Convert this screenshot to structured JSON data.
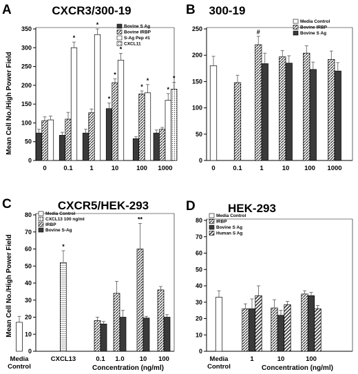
{
  "figure": {
    "ylabel": "Mean Cell No./High Power Field",
    "xlabel": "Concentration (ng/ml)"
  },
  "chart_data": [
    {
      "id": "A",
      "type": "bar",
      "panel_letter": "A",
      "title": "CXCR3/300-19",
      "ylim": [
        0,
        350
      ],
      "yticks": [
        0,
        50,
        100,
        150,
        200,
        250,
        300,
        350
      ],
      "categories": [
        "0",
        "0.1",
        "1",
        "10",
        "100",
        "1000"
      ],
      "legend_position": "top-right",
      "series": [
        {
          "name": "Bovine S Ag",
          "pattern": "solid",
          "values": [
            73,
            67,
            73,
            138,
            58,
            73
          ],
          "errors": [
            10,
            8,
            10,
            15,
            5,
            8
          ],
          "sig": [
            "",
            "",
            "",
            "*",
            "",
            ""
          ]
        },
        {
          "name": "Bovine IRBP",
          "pattern": "diag",
          "values": [
            106,
            110,
            127,
            207,
            177,
            83
          ],
          "errors": [
            10,
            18,
            10,
            10,
            8,
            5
          ],
          "sig": [
            "",
            "",
            "",
            "*",
            "*",
            ""
          ]
        },
        {
          "name": "S-Ag Pep #1",
          "pattern": "white",
          "values": [
            108,
            300,
            335,
            267,
            180,
            160
          ],
          "errors": [
            10,
            15,
            15,
            18,
            22,
            18
          ],
          "sig": [
            "",
            "*",
            "*",
            "*",
            "*",
            "*"
          ]
        },
        {
          "name": "CXCL11",
          "pattern": "dots",
          "values": [
            null,
            null,
            null,
            null,
            null,
            190
          ],
          "errors": [
            null,
            null,
            null,
            null,
            null,
            18
          ],
          "sig": [
            "",
            "",
            "",
            "",
            "",
            "*"
          ]
        }
      ]
    },
    {
      "id": "B",
      "type": "bar",
      "panel_letter": "B",
      "title": "300-19",
      "ylim": [
        0,
        250
      ],
      "yticks": [
        0,
        50,
        100,
        150,
        200,
        250
      ],
      "categories": [
        "0",
        "0.1",
        "1",
        "10",
        "100",
        "1000"
      ],
      "legend_position": "top-right",
      "series": [
        {
          "name": "Media Control",
          "pattern": "white",
          "values": [
            180,
            null,
            null,
            null,
            null,
            null
          ],
          "errors": [
            18,
            null,
            null,
            null,
            null,
            null
          ],
          "sig": [
            "",
            "",
            "",
            "",
            "",
            ""
          ]
        },
        {
          "name": "Bovine IRBP",
          "pattern": "diag",
          "values": [
            null,
            148,
            220,
            197,
            204,
            192
          ],
          "errors": [
            null,
            14,
            16,
            12,
            14,
            16
          ],
          "sig": [
            "",
            "",
            "#",
            "",
            "",
            ""
          ]
        },
        {
          "name": "Bovine S Ag",
          "pattern": "solid",
          "values": [
            null,
            null,
            184,
            185,
            173,
            170
          ],
          "errors": [
            null,
            null,
            20,
            14,
            14,
            16
          ],
          "sig": [
            "",
            "",
            "",
            "",
            "",
            ""
          ]
        }
      ]
    },
    {
      "id": "C",
      "type": "bar",
      "panel_letter": "C",
      "title": "CXCR5/HEK-293",
      "ylim": [
        0,
        80
      ],
      "yticks": [
        0,
        10,
        20,
        30,
        40,
        50,
        60,
        70,
        80
      ],
      "categories": [
        "Media\nControl",
        "CXCL13",
        "0.1",
        "1.0",
        "10",
        "100"
      ],
      "legend_position": "top-left",
      "series": [
        {
          "name": "Media Control",
          "pattern": "white",
          "values": [
            17,
            null,
            null,
            null,
            null,
            null
          ],
          "errors": [
            3.5,
            null,
            null,
            null,
            null,
            null
          ],
          "sig": [
            "",
            "",
            "",
            "",
            "",
            ""
          ]
        },
        {
          "name": "CXCL13 100 ng/ml",
          "pattern": "dots",
          "values": [
            null,
            52,
            null,
            null,
            null,
            null
          ],
          "errors": [
            null,
            7,
            null,
            null,
            null,
            null
          ],
          "sig": [
            "",
            "*",
            "",
            "",
            "",
            ""
          ]
        },
        {
          "name": "IRBP",
          "pattern": "diag",
          "values": [
            null,
            null,
            18,
            34,
            60,
            36
          ],
          "errors": [
            null,
            null,
            2,
            7,
            15,
            2
          ],
          "sig": [
            "",
            "",
            "",
            "",
            "**",
            ""
          ]
        },
        {
          "name": "Bovine S-Ag",
          "pattern": "solid",
          "values": [
            null,
            null,
            16,
            20,
            19.5,
            20
          ],
          "errors": [
            null,
            null,
            1.5,
            4,
            1,
            1.5
          ],
          "sig": [
            "",
            "",
            "",
            "",
            "",
            ""
          ]
        }
      ]
    },
    {
      "id": "D",
      "type": "bar",
      "panel_letter": "D",
      "title": "HEK-293",
      "ylim": [
        0,
        80
      ],
      "yticks": [
        0,
        10,
        20,
        30,
        40,
        50,
        60,
        70,
        80
      ],
      "categories": [
        "Media\nControl",
        "1",
        "10",
        "100"
      ],
      "legend_position": "top-left",
      "series": [
        {
          "name": "Media Control",
          "pattern": "white",
          "values": [
            33,
            null,
            null,
            null
          ],
          "errors": [
            4,
            null,
            null,
            null
          ],
          "sig": [
            "",
            "",
            "",
            ""
          ]
        },
        {
          "name": "IRBP",
          "pattern": "diag",
          "values": [
            null,
            26,
            26.5,
            35
          ],
          "errors": [
            null,
            3,
            5,
            2
          ],
          "sig": [
            "",
            "",
            "",
            ""
          ]
        },
        {
          "name": "Bovine S Ag",
          "pattern": "solid",
          "values": [
            null,
            26,
            22,
            34
          ],
          "errors": [
            null,
            6,
            3,
            2
          ],
          "sig": [
            "",
            "",
            "",
            ""
          ]
        },
        {
          "name": "Human S Ag",
          "pattern": "diag2",
          "values": [
            null,
            34,
            28.5,
            26
          ],
          "errors": [
            null,
            6,
            2,
            2
          ],
          "sig": [
            "",
            "",
            "",
            ""
          ]
        }
      ]
    }
  ]
}
